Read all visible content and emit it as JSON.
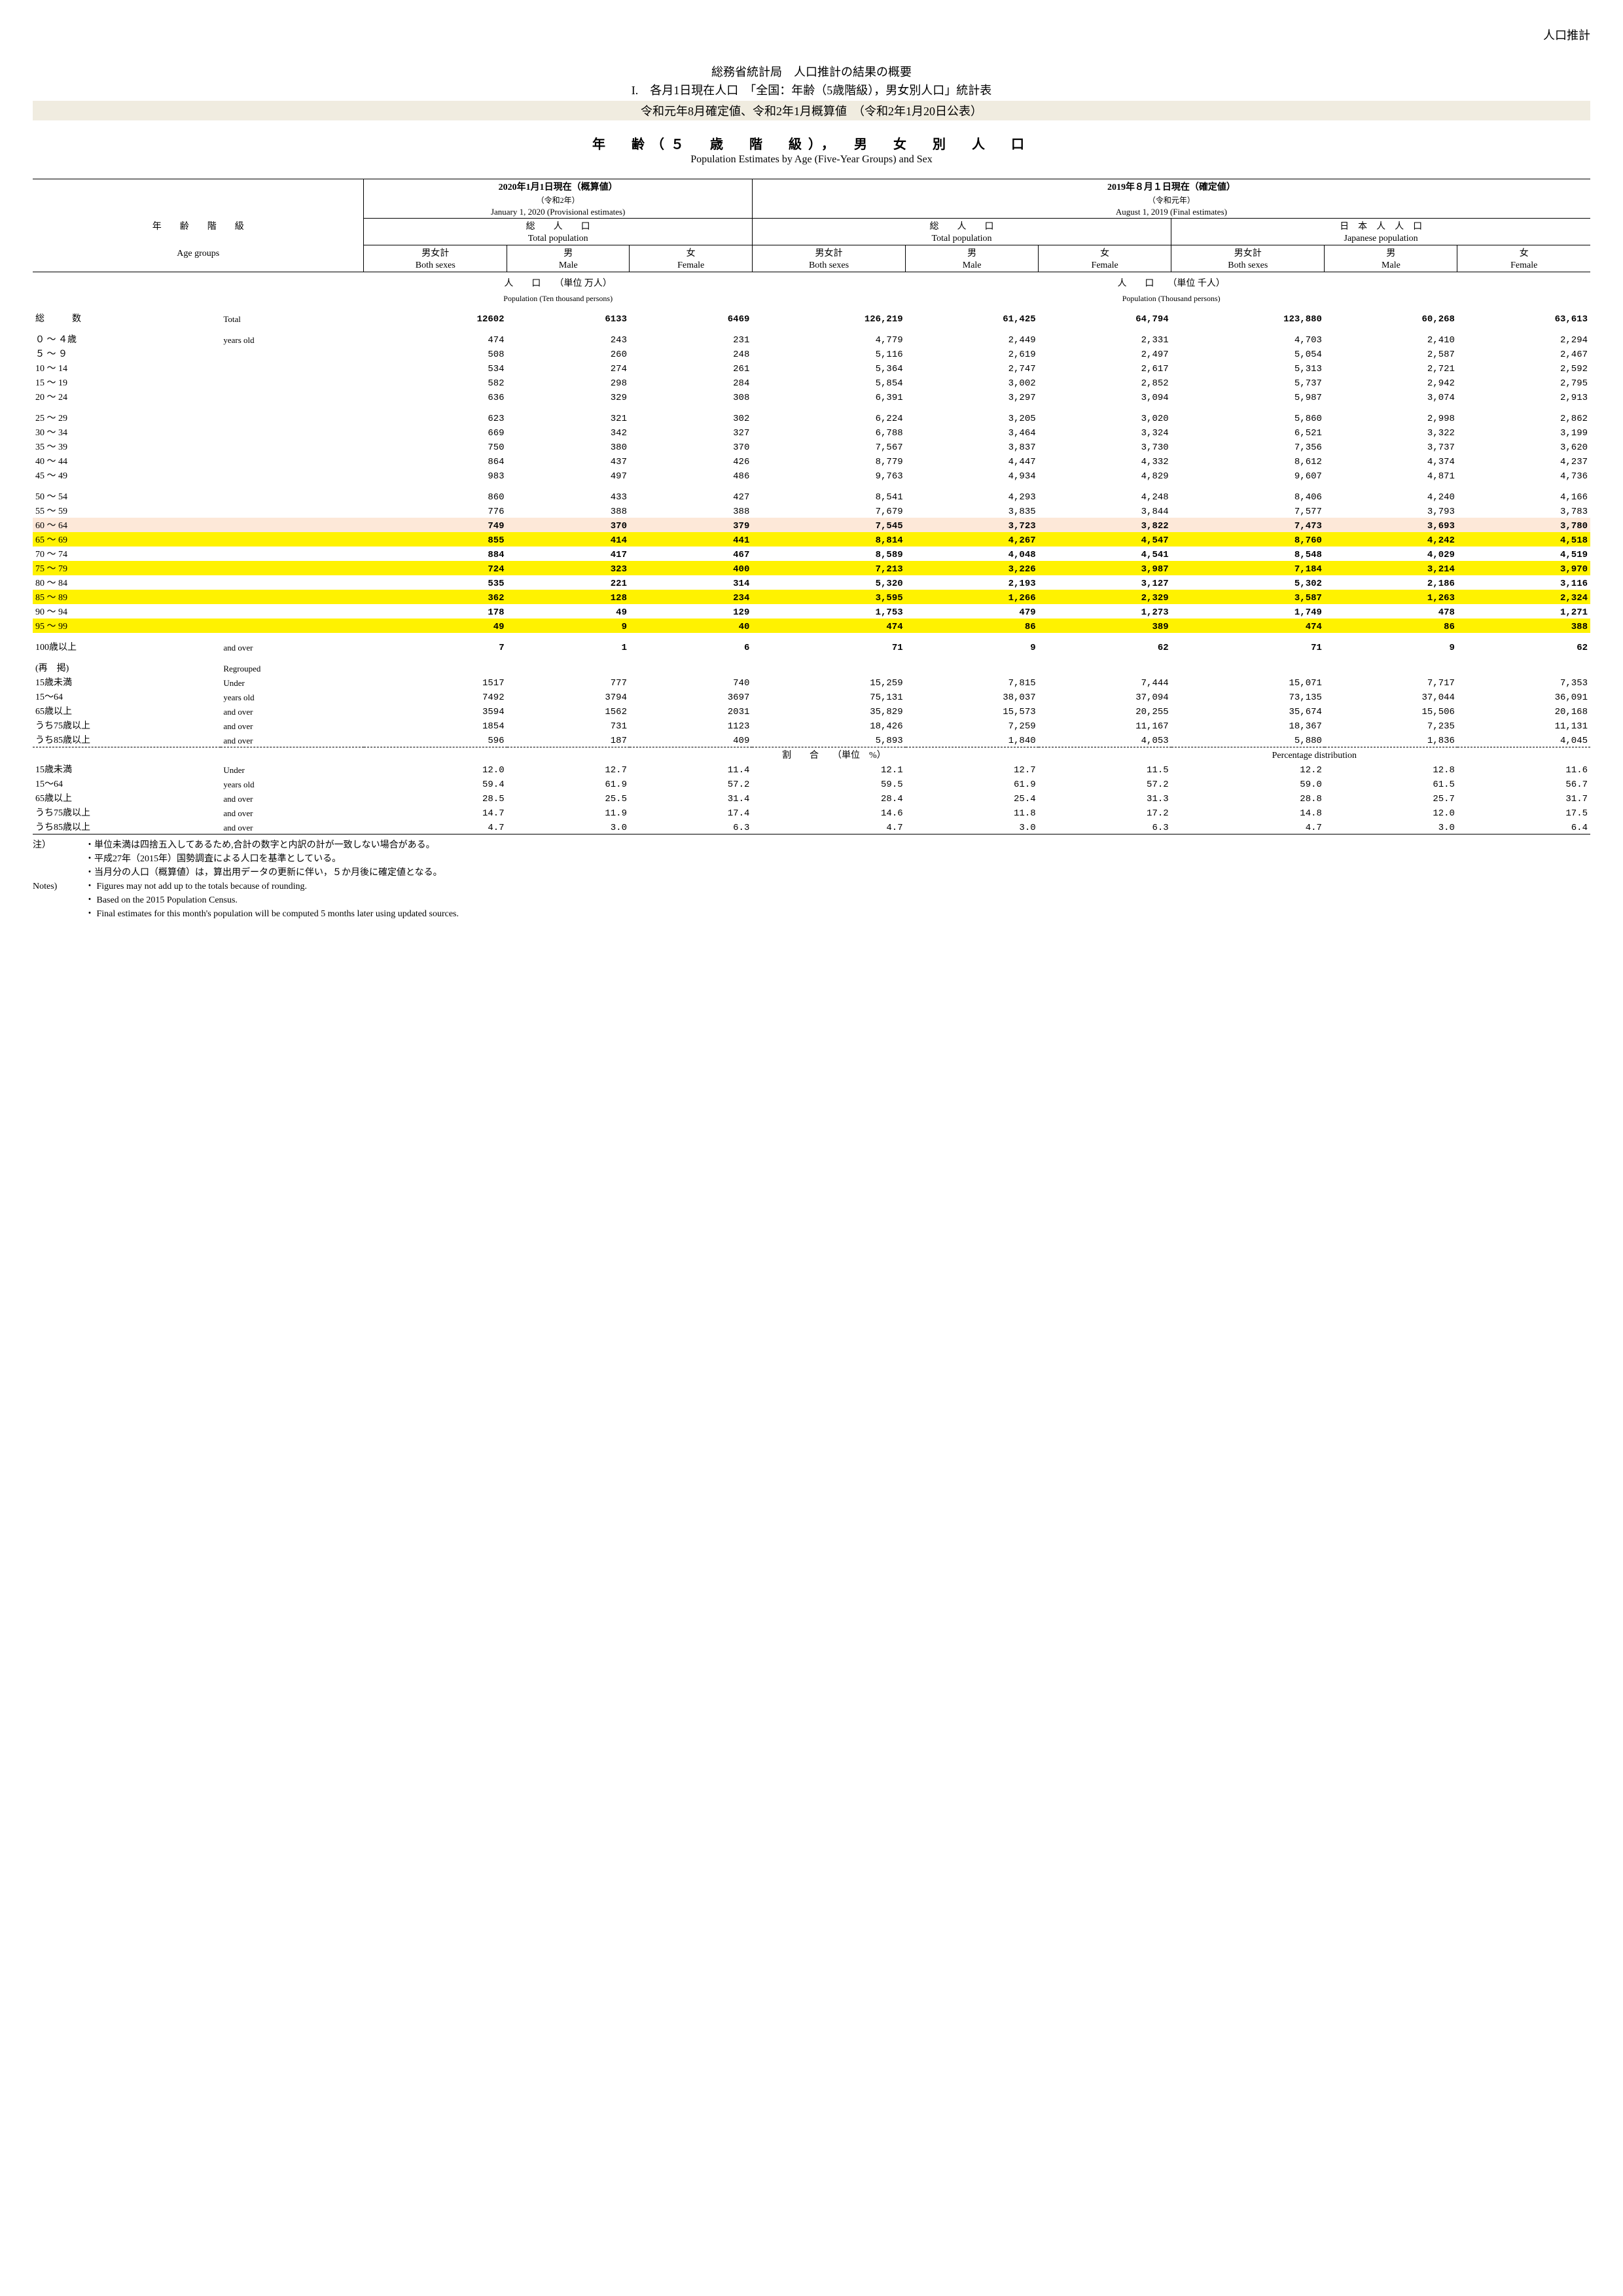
{
  "topRight": "人口推計",
  "header": {
    "line1": "総務省統計局　人口推計の結果の概要",
    "line2": "I.　各月1日現在人口　「全国：年齢（5歳階級），男女別人口」統計表",
    "line3": "令和元年8月確定値、令和2年1月概算値　（令和2年1月20日公表）"
  },
  "subTitle": {
    "jp": "年　齢（５　歳　階　級），　男　女　別　人　口",
    "en": "Population Estimates by  Age (Five-Year Groups) and  Sex"
  },
  "colHead": {
    "leftTitle": "2020年1月1日現在（概算値）",
    "leftSub": "（令和2年）",
    "leftSub2": "January 1, 2020 (Provisional estimates)",
    "rightTitle": "2019年８月１日現在（確定値）",
    "rightSub": "（令和元年）",
    "rightSub2": "August 1, 2019  (Final estimates)",
    "rowLabelJp": "年　　齢　　階　　級",
    "rowLabelEn": "Age groups",
    "totalPopJp": "総　　人　　口",
    "totalPopEn": "Total  population",
    "jpPopJp": "日　本　人　人　口",
    "jpPopEn": "Japanese  population",
    "bothJp": "男女計",
    "bothEn": "Both sexes",
    "maleJp": "男",
    "maleEn": "Male",
    "femaleJp": "女",
    "femaleEn": "Female",
    "unit1Jp": "人　　口　　（単位  万人）",
    "unit1En": "Population  (Ten thousand persons)",
    "unit2Jp": "人　　口　　（単位  千人）",
    "unit2En": "Population  (Thousand persons)"
  },
  "totalRow": {
    "jp": "総　　　数",
    "en": "Total",
    "v": [
      "12602",
      "6133",
      "6469",
      "126,219",
      "61,425",
      "64,794",
      "123,880",
      "60,268",
      "63,613"
    ]
  },
  "rows": [
    {
      "jp": "０ ～ ４歳",
      "en": "years old",
      "v": [
        "474",
        "243",
        "231",
        "4,779",
        "2,449",
        "2,331",
        "4,703",
        "2,410",
        "2,294"
      ]
    },
    {
      "jp": "５ ～ ９",
      "en": "",
      "v": [
        "508",
        "260",
        "248",
        "5,116",
        "2,619",
        "2,497",
        "5,054",
        "2,587",
        "2,467"
      ]
    },
    {
      "jp": "10 ～ 14",
      "en": "",
      "v": [
        "534",
        "274",
        "261",
        "5,364",
        "2,747",
        "2,617",
        "5,313",
        "2,721",
        "2,592"
      ]
    },
    {
      "jp": "15 ～ 19",
      "en": "",
      "v": [
        "582",
        "298",
        "284",
        "5,854",
        "3,002",
        "2,852",
        "5,737",
        "2,942",
        "2,795"
      ]
    },
    {
      "jp": "20 ～ 24",
      "en": "",
      "v": [
        "636",
        "329",
        "308",
        "6,391",
        "3,297",
        "3,094",
        "5,987",
        "3,074",
        "2,913"
      ],
      "gap": true
    },
    {
      "jp": "25 ～ 29",
      "en": "",
      "v": [
        "623",
        "321",
        "302",
        "6,224",
        "3,205",
        "3,020",
        "5,860",
        "2,998",
        "2,862"
      ]
    },
    {
      "jp": "30 ～ 34",
      "en": "",
      "v": [
        "669",
        "342",
        "327",
        "6,788",
        "3,464",
        "3,324",
        "6,521",
        "3,322",
        "3,199"
      ]
    },
    {
      "jp": "35 ～ 39",
      "en": "",
      "v": [
        "750",
        "380",
        "370",
        "7,567",
        "3,837",
        "3,730",
        "7,356",
        "3,737",
        "3,620"
      ]
    },
    {
      "jp": "40 ～ 44",
      "en": "",
      "v": [
        "864",
        "437",
        "426",
        "8,779",
        "4,447",
        "4,332",
        "8,612",
        "4,374",
        "4,237"
      ]
    },
    {
      "jp": "45 ～ 49",
      "en": "",
      "v": [
        "983",
        "497",
        "486",
        "9,763",
        "4,934",
        "4,829",
        "9,607",
        "4,871",
        "4,736"
      ],
      "gap": true
    },
    {
      "jp": "50 ～ 54",
      "en": "",
      "v": [
        "860",
        "433",
        "427",
        "8,541",
        "4,293",
        "4,248",
        "8,406",
        "4,240",
        "4,166"
      ]
    },
    {
      "jp": "55 ～ 59",
      "en": "",
      "v": [
        "776",
        "388",
        "388",
        "7,679",
        "3,835",
        "3,844",
        "7,577",
        "3,793",
        "3,783"
      ]
    },
    {
      "jp": "60 ～ 64",
      "en": "",
      "v": [
        "749",
        "370",
        "379",
        "7,545",
        "3,723",
        "3,822",
        "7,473",
        "3,693",
        "3,780"
      ],
      "hl": "peach",
      "bold": true
    },
    {
      "jp": "65 ～ 69",
      "en": "",
      "v": [
        "855",
        "414",
        "441",
        "8,814",
        "4,267",
        "4,547",
        "8,760",
        "4,242",
        "4,518"
      ],
      "hl": "yellow",
      "bold": true
    },
    {
      "jp": "70 ～ 74",
      "en": "",
      "v": [
        "884",
        "417",
        "467",
        "8,589",
        "4,048",
        "4,541",
        "8,548",
        "4,029",
        "4,519"
      ],
      "bold": true
    },
    {
      "jp": "75 ～ 79",
      "en": "",
      "v": [
        "724",
        "323",
        "400",
        "7,213",
        "3,226",
        "3,987",
        "7,184",
        "3,214",
        "3,970"
      ],
      "hl": "yellow",
      "bold": true
    },
    {
      "jp": "80 ～ 84",
      "en": "",
      "v": [
        "535",
        "221",
        "314",
        "5,320",
        "2,193",
        "3,127",
        "5,302",
        "2,186",
        "3,116"
      ],
      "bold": true
    },
    {
      "jp": "85 ～ 89",
      "en": "",
      "v": [
        "362",
        "128",
        "234",
        "3,595",
        "1,266",
        "2,329",
        "3,587",
        "1,263",
        "2,324"
      ],
      "hl": "yellow",
      "bold": true
    },
    {
      "jp": "90 ～ 94",
      "en": "",
      "v": [
        "178",
        "49",
        "129",
        "1,753",
        "479",
        "1,273",
        "1,749",
        "478",
        "1,271"
      ],
      "bold": true
    },
    {
      "jp": "95 ～ 99",
      "en": "",
      "v": [
        "49",
        "9",
        "40",
        "474",
        "86",
        "389",
        "474",
        "86",
        "388"
      ],
      "hl": "yellow",
      "bold": true,
      "gap": true
    },
    {
      "jp": "100歳以上",
      "en": "and over",
      "v": [
        "7",
        "1",
        "6",
        "71",
        "9",
        "62",
        "71",
        "9",
        "62"
      ],
      "bold": true,
      "gap": true
    }
  ],
  "regroupLabel": {
    "jp": "(再　掲)",
    "en": "Regrouped"
  },
  "regroup": [
    {
      "jp": "15歳未満",
      "en": "Under",
      "v": [
        "1517",
        "777",
        "740",
        "15,259",
        "7,815",
        "7,444",
        "15,071",
        "7,717",
        "7,353"
      ]
    },
    {
      "jp": "15～64",
      "en": "years old",
      "v": [
        "7492",
        "3794",
        "3697",
        "75,131",
        "38,037",
        "37,094",
        "73,135",
        "37,044",
        "36,091"
      ]
    },
    {
      "jp": "65歳以上",
      "en": "and over",
      "v": [
        "3594",
        "1562",
        "2031",
        "35,829",
        "15,573",
        "20,255",
        "35,674",
        "15,506",
        "20,168"
      ]
    },
    {
      "jp": "うち75歳以上",
      "en": "and over",
      "v": [
        "1854",
        "731",
        "1123",
        "18,426",
        "7,259",
        "11,167",
        "18,367",
        "7,235",
        "11,131"
      ]
    },
    {
      "jp": "うち85歳以上",
      "en": "and over",
      "v": [
        "596",
        "187",
        "409",
        "5,893",
        "1,840",
        "4,053",
        "5,880",
        "1,836",
        "4,045"
      ]
    }
  ],
  "pctHeader": {
    "jp": "割　　合　　（単位　%）",
    "en": "Percentage distribution"
  },
  "pct": [
    {
      "jp": "15歳未満",
      "en": "Under",
      "v": [
        "12.0",
        "12.7",
        "11.4",
        "12.1",
        "12.7",
        "11.5",
        "12.2",
        "12.8",
        "11.6"
      ]
    },
    {
      "jp": "15～64",
      "en": "years old",
      "v": [
        "59.4",
        "61.9",
        "57.2",
        "59.5",
        "61.9",
        "57.2",
        "59.0",
        "61.5",
        "56.7"
      ]
    },
    {
      "jp": "65歳以上",
      "en": "and over",
      "v": [
        "28.5",
        "25.5",
        "31.4",
        "28.4",
        "25.4",
        "31.3",
        "28.8",
        "25.7",
        "31.7"
      ]
    },
    {
      "jp": "うち75歳以上",
      "en": "and over",
      "v": [
        "14.7",
        "11.9",
        "17.4",
        "14.6",
        "11.8",
        "17.2",
        "14.8",
        "12.0",
        "17.5"
      ]
    },
    {
      "jp": "うち85歳以上",
      "en": "and over",
      "v": [
        "4.7",
        "3.0",
        "6.3",
        "4.7",
        "3.0",
        "6.3",
        "4.7",
        "3.0",
        "6.4"
      ]
    }
  ],
  "notes": {
    "jpLabel": "注）",
    "jp": [
      "・単位未満は四捨五入してあるため,合計の数字と内訳の計が一致しない場合がある。",
      "・平成27年（2015年）国勢調査による人口を基準としている。",
      "・当月分の人口（概算値）は，算出用データの更新に伴い，５か月後に確定値となる。"
    ],
    "enLabel": "Notes)",
    "en": [
      "・ Figures may not add up to the totals because of rounding.",
      "・ Based on the 2015 Population Census.",
      "・ Final estimates for this month's population will be computed 5 months later using updated sources."
    ]
  }
}
